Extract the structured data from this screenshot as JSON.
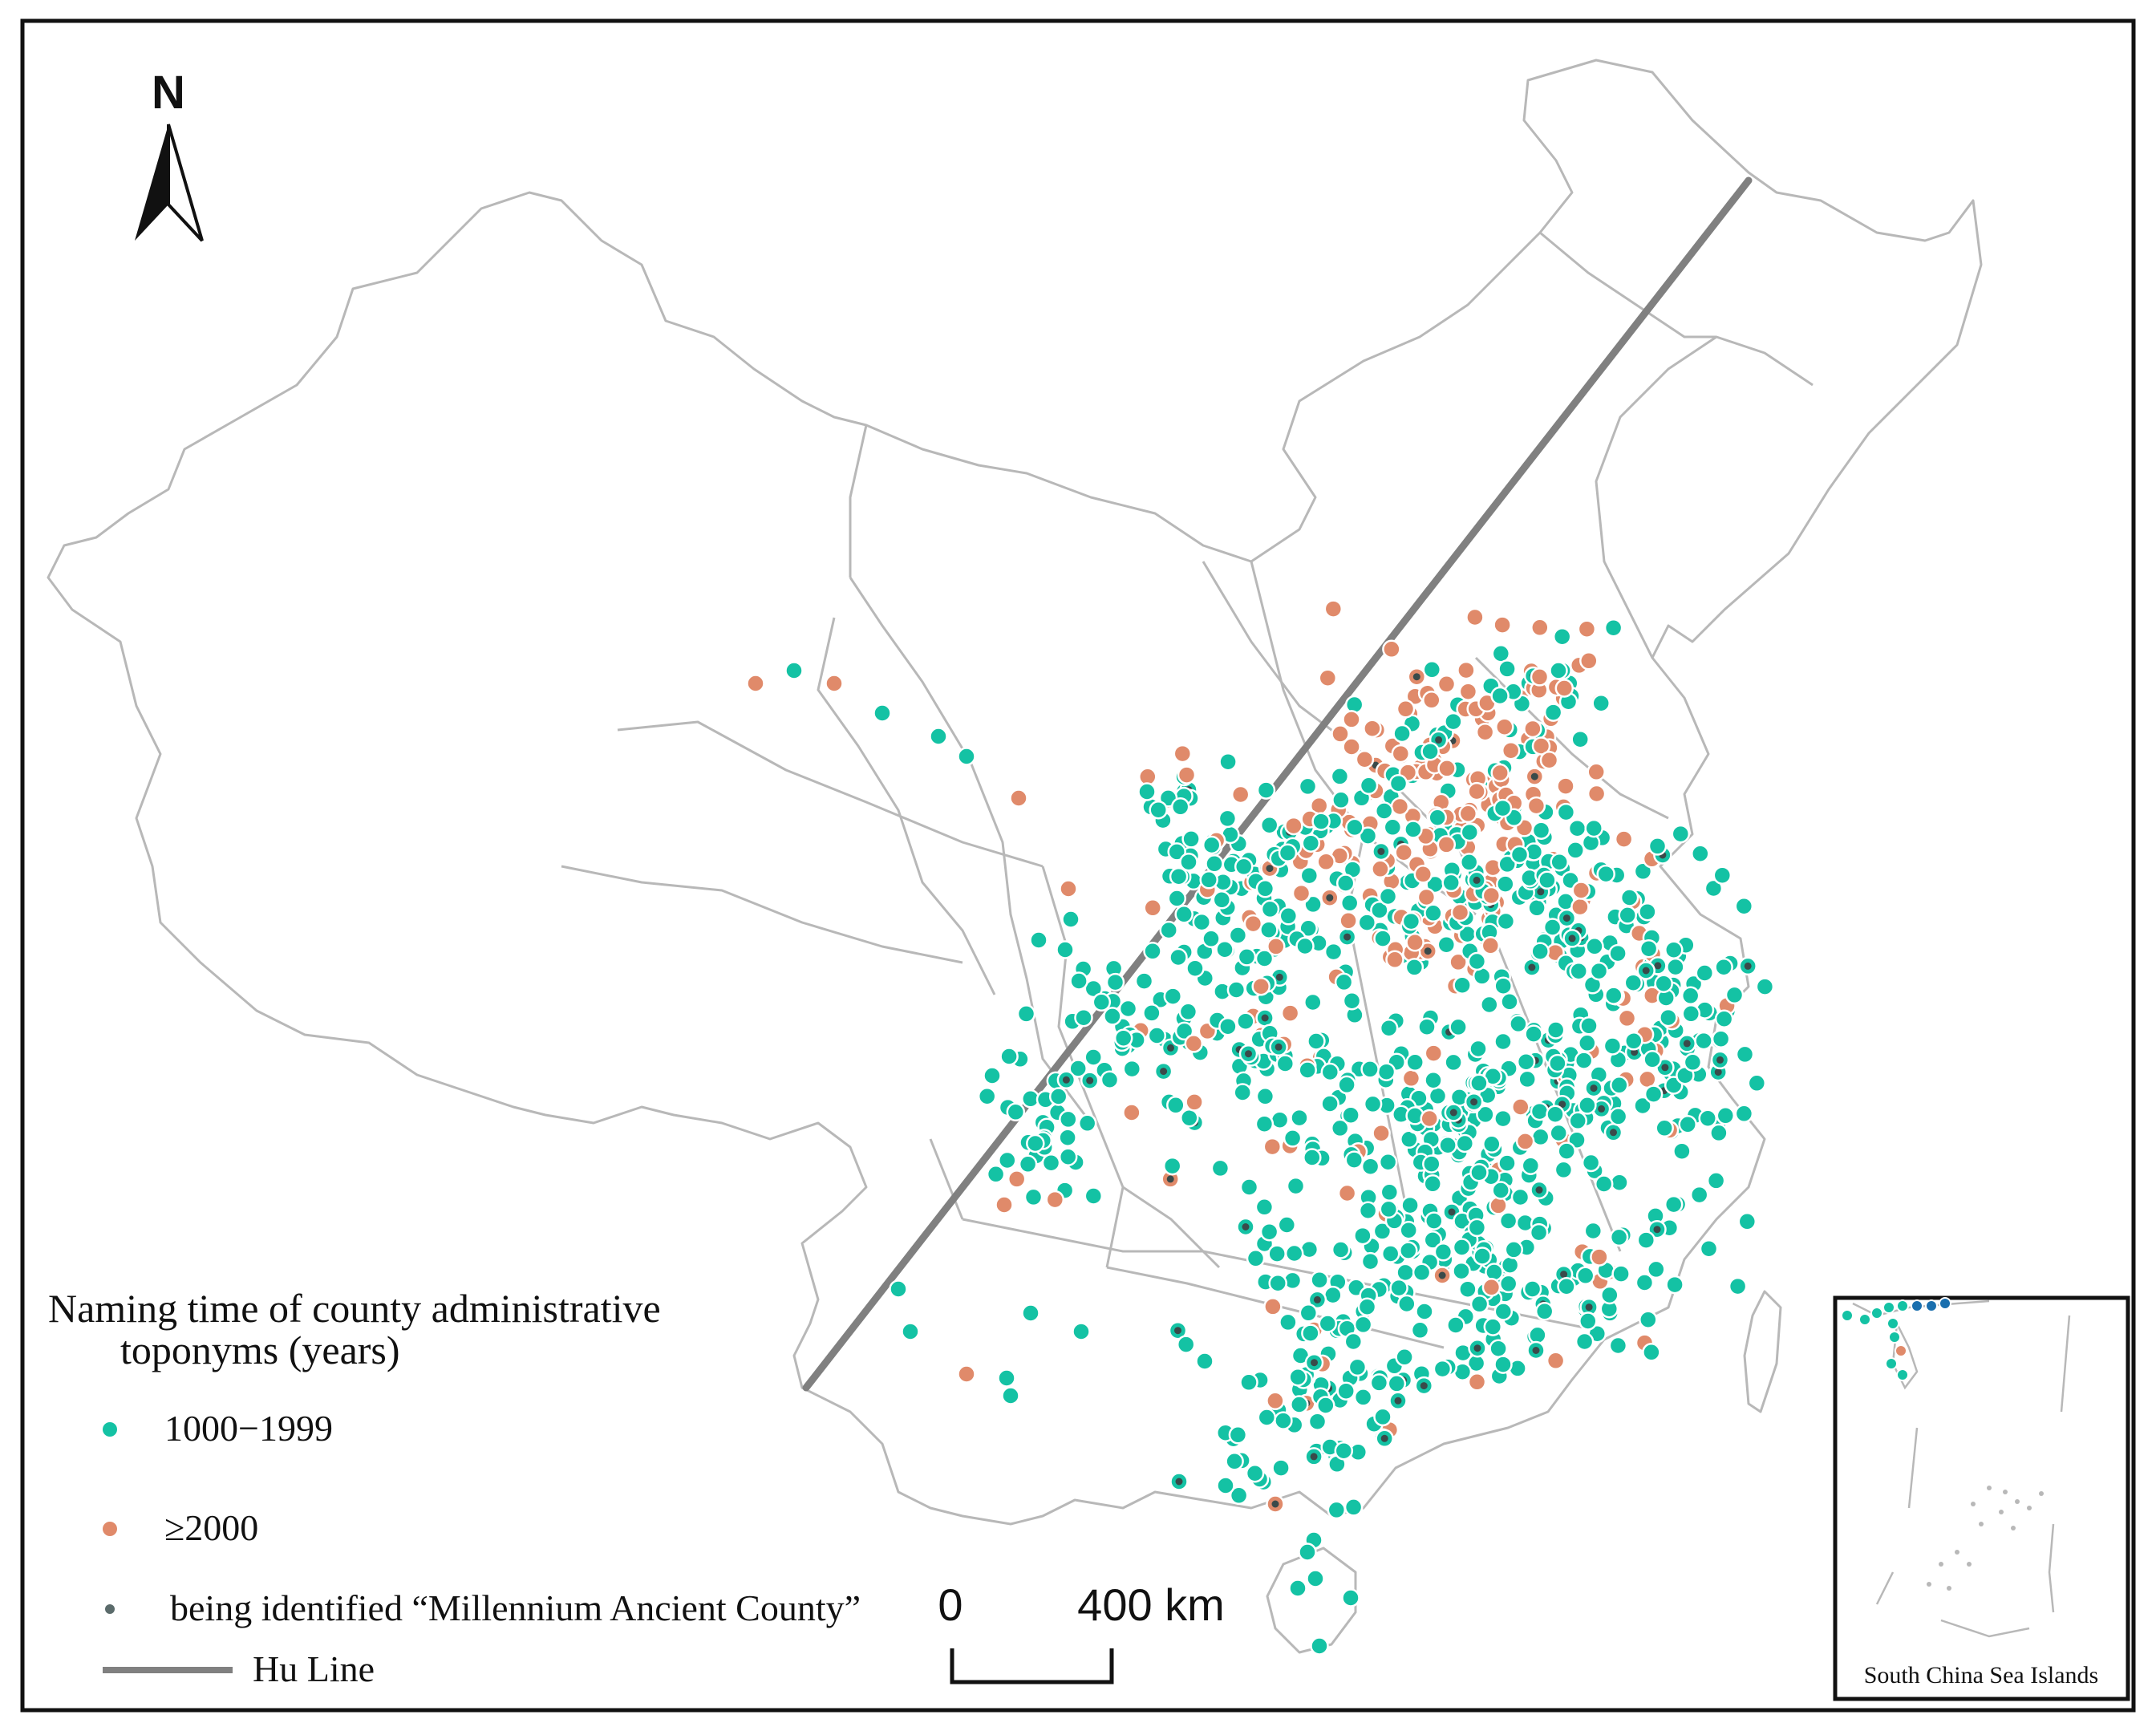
{
  "north_arrow": {
    "label": "N"
  },
  "legend": {
    "title_line1": "Naming time of county administrative",
    "title_line2": "toponyms (years)",
    "items": [
      {
        "label": "1000−1999",
        "color": "#14c2a4",
        "symbol": "dot"
      },
      {
        "label": "≥2000",
        "color": "#e08a6a",
        "symbol": "dot"
      },
      {
        "label": "being identified “Millennium Ancient County”",
        "color": "#5b6b6b",
        "symbol": "small-dot"
      },
      {
        "label": "Hu Line",
        "color": "#808080",
        "symbol": "line"
      }
    ]
  },
  "scale_bar": {
    "start_label": "0",
    "end_label": "400 km"
  },
  "inset": {
    "caption": "South China Sea Islands"
  },
  "colors": {
    "boundary": "#b8b8b8",
    "hu_line": "#808080",
    "teal": "#14c2a4",
    "orange": "#e08a6a",
    "ancient_marker": "#3a4a4a",
    "frame": "#111111"
  }
}
